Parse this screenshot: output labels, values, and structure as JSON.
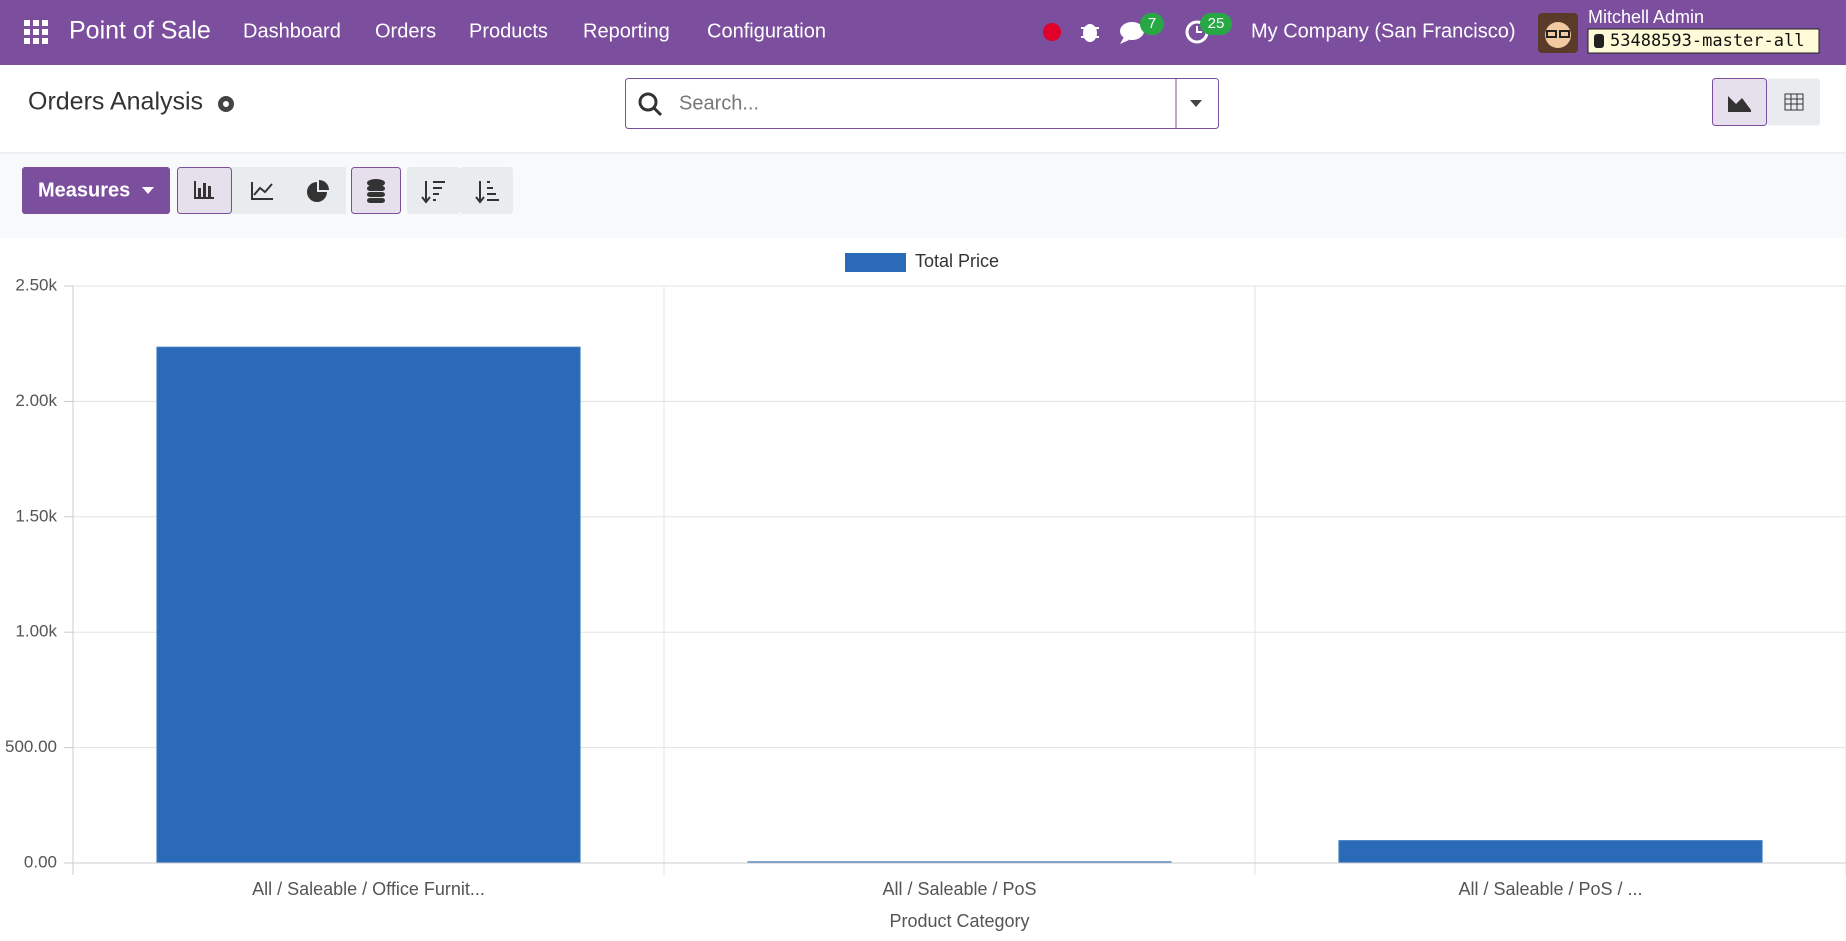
{
  "navbar": {
    "app_name": "Point of Sale",
    "menu": [
      "Dashboard",
      "Orders",
      "Products",
      "Reporting",
      "Configuration"
    ],
    "messages_badge": "7",
    "activities_badge": "25",
    "company": "My Company (San Francisco)",
    "user": "Mitchell Admin",
    "database": "53488593-master-all"
  },
  "control_panel": {
    "title": "Orders Analysis",
    "search_placeholder": "Search...",
    "measures_button": "Measures"
  },
  "chart_data": {
    "type": "bar",
    "legend": "Total Price",
    "color": "#2a6ab7",
    "categories": [
      "All / Saleable / Office Furnit...",
      "All / Saleable / PoS",
      "All / Saleable / PoS / ..."
    ],
    "values": [
      2235,
      5,
      97
    ],
    "x_label": "Product Category",
    "ylim": [
      0,
      2500
    ],
    "yticks": [
      {
        "value": 0,
        "label": "0.00"
      },
      {
        "value": 500,
        "label": "500.00"
      },
      {
        "value": 1000,
        "label": "1.00k"
      },
      {
        "value": 1500,
        "label": "1.50k"
      },
      {
        "value": 2000,
        "label": "2.00k"
      },
      {
        "value": 2500,
        "label": "2.50k"
      }
    ],
    "grid": true
  }
}
